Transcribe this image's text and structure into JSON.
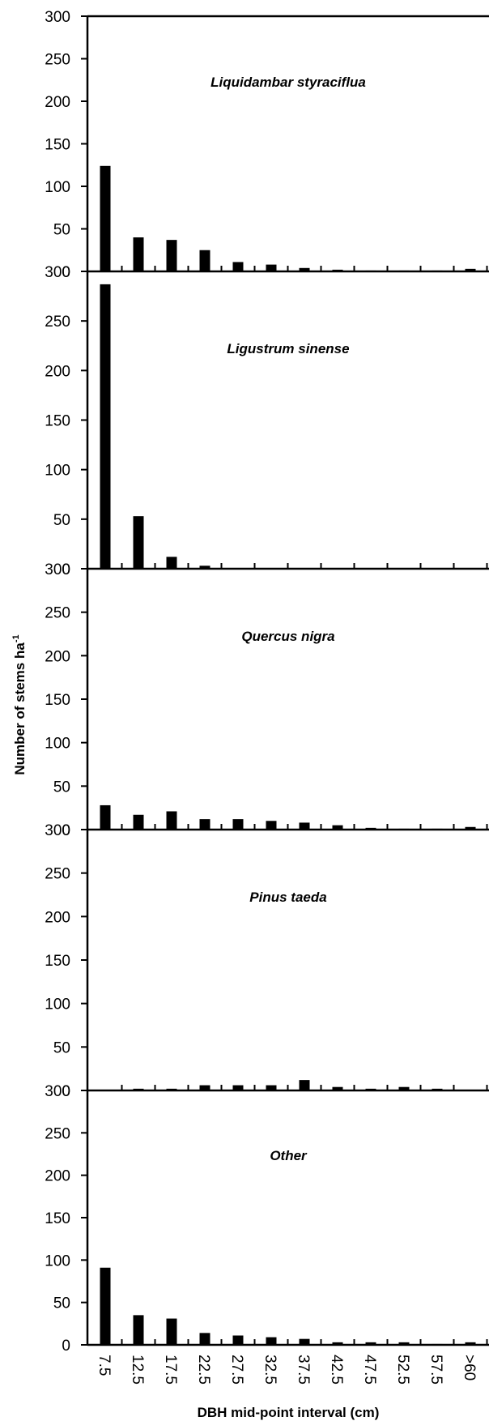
{
  "chart_data": {
    "type": "bar",
    "ylabel": "Number of stems ha",
    "ylabel_superscript": "-1",
    "xlabel": "DBH mid-point interval (cm)",
    "categories": [
      "7.5",
      "12.5",
      "17.5",
      "22.5",
      "27.5",
      "32.5",
      "37.5",
      "42.5",
      "47.5",
      "52.5",
      "57.5",
      ">60"
    ],
    "ylim": [
      0,
      300
    ],
    "yticks": [
      0,
      50,
      100,
      150,
      200,
      250,
      300
    ],
    "bar_color": "#000000",
    "panels": [
      {
        "title": "Liquidambar styraciflua",
        "values": [
          124,
          40,
          37,
          25,
          11,
          8,
          4,
          2,
          1,
          1,
          1,
          3
        ]
      },
      {
        "title": "Ligustrum sinense",
        "values": [
          287,
          53,
          12,
          3,
          0,
          0,
          0,
          0,
          0,
          0,
          0,
          0
        ]
      },
      {
        "title": "Quercus nigra",
        "values": [
          28,
          17,
          21,
          12,
          12,
          10,
          8,
          5,
          2,
          1,
          1,
          3
        ]
      },
      {
        "title": "Pinus taeda",
        "values": [
          0,
          2,
          2,
          6,
          6,
          6,
          12,
          4,
          2,
          4,
          2,
          0
        ]
      },
      {
        "title": "Other",
        "values": [
          91,
          35,
          31,
          14,
          11,
          9,
          7,
          3,
          3,
          3,
          1,
          3
        ]
      }
    ]
  }
}
